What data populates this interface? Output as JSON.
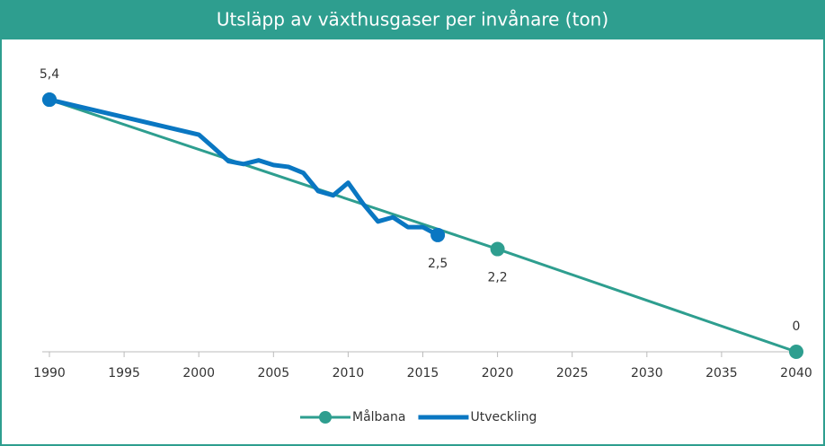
{
  "chart_data": {
    "type": "line",
    "title": "Utsläpp av växthusgaser per invånare (ton)",
    "xlim": [
      1990,
      2040
    ],
    "xticks": [
      1990,
      1995,
      2000,
      2005,
      2010,
      2015,
      2020,
      2025,
      2030,
      2035,
      2040
    ],
    "ylim": [
      0,
      6.4
    ],
    "legend": "bottom",
    "series": [
      {
        "name": "Målbana",
        "color": "#2e9e8f",
        "x": [
          1990,
          2020,
          2040
        ],
        "values": [
          5.4,
          2.2,
          0
        ],
        "value_labels": [
          null,
          "2,2",
          "0"
        ]
      },
      {
        "name": "Utveckling",
        "color": "#0a77c2",
        "x": [
          1990,
          2000,
          2001,
          2002,
          2003,
          2004,
          2005,
          2006,
          2007,
          2008,
          2009,
          2010,
          2011,
          2012,
          2013,
          2014,
          2015,
          2016
        ],
        "values": [
          5.4,
          4.65,
          4.37,
          4.08,
          4.02,
          4.1,
          4.0,
          3.96,
          3.83,
          3.44,
          3.35,
          3.62,
          3.17,
          2.79,
          2.88,
          2.67,
          2.67,
          2.5
        ],
        "value_labels": [
          "5,4",
          null,
          null,
          null,
          null,
          null,
          null,
          null,
          null,
          null,
          null,
          null,
          null,
          null,
          null,
          null,
          null,
          "2,5"
        ]
      }
    ]
  }
}
